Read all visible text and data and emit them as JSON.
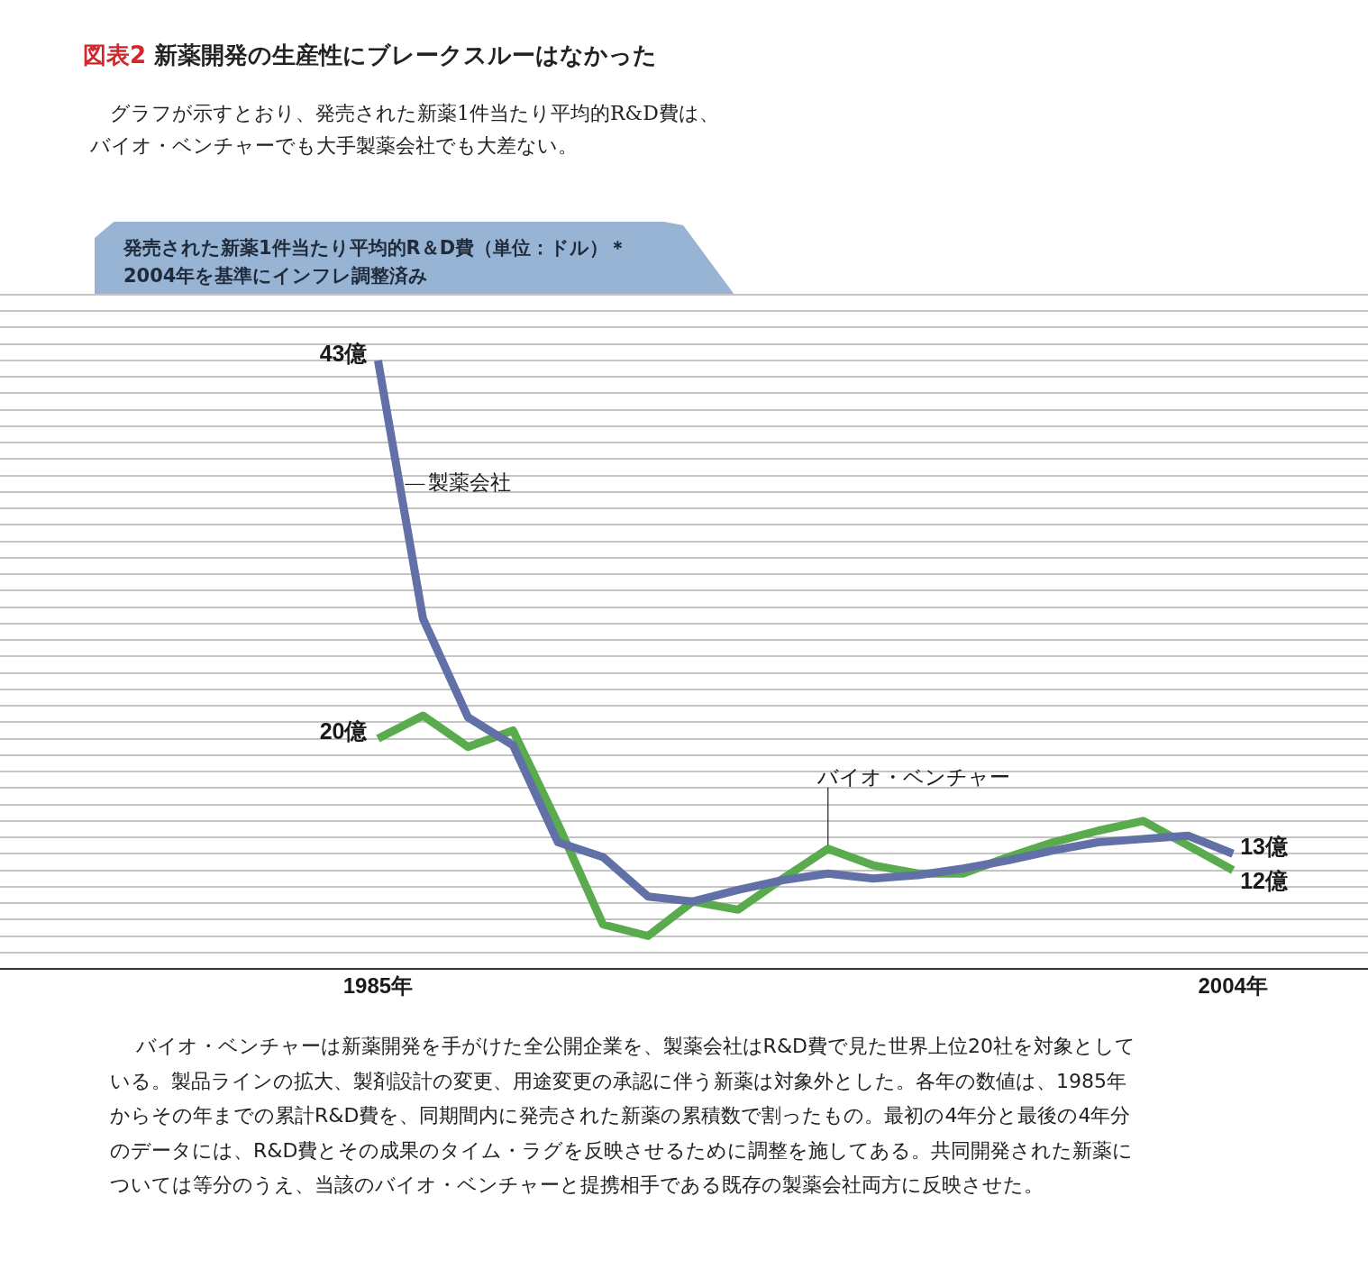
{
  "chart_data": {
    "type": "line",
    "title": "図表2 新薬開発の生産性にブレークスルーはなかった",
    "subtitle": "グラフが示すとおり、発売された新薬1件当たり平均的R&D費は、バイオ・ベンチャーでも大手製薬会社でも大差ない。",
    "ylabel": "発売された新薬1件当たり平均的R＆D費（単位：ドル）＊2004年を基準にインフレ調整済み",
    "annotations": [
      "バイオ・ベンチャーは新薬開発を手がけた全公開企業を、製薬会社はR&D費で見た世界上位20社を対象としている。製品ラインの拡大、製剤設計の変更、用途変更の承認に伴う新薬は対象外とした。各年の数値は、1985年からその年までの累計R&D費を、同期間内に発売された新薬の累積数で割ったもの。最初の4年分と最後の4年分のデータには、R&D費とその成果のタイム・ラグを反映させるために調整を施してある。共同開発された新薬については等分のうえ、当該のバイオ・ベンチャーと提携相手である既存の製薬会社両方に反映させた。"
    ],
    "x": [
      1985,
      1986,
      1987,
      1988,
      1989,
      1990,
      1991,
      1992,
      1993,
      1994,
      1995,
      1996,
      1997,
      1998,
      1999,
      2000,
      2001,
      2002,
      2003,
      2004
    ],
    "xlim": [
      1976.6,
      2007
    ],
    "xticks": [
      {
        "value": 1985,
        "label": "1985年"
      },
      {
        "value": 2004,
        "label": "2004年"
      }
    ],
    "ylim": [
      6,
      47
    ],
    "yticks": [
      {
        "value": 7,
        "label": null
      },
      {
        "value": 8,
        "label": null
      },
      {
        "value": 9,
        "label": null
      },
      {
        "value": 10,
        "label": null
      },
      {
        "value": 11,
        "label": null
      },
      {
        "value": 12,
        "label": null
      },
      {
        "value": 13,
        "label": null
      },
      {
        "value": 14,
        "label": null
      },
      {
        "value": 15,
        "label": null
      },
      {
        "value": 16,
        "label": null
      },
      {
        "value": 17,
        "label": null
      },
      {
        "value": 18,
        "label": null
      },
      {
        "value": 19,
        "label": null
      },
      {
        "value": 20,
        "label": null
      },
      {
        "value": 21,
        "label": null
      },
      {
        "value": 22,
        "label": null
      },
      {
        "value": 23,
        "label": null
      },
      {
        "value": 24,
        "label": null
      },
      {
        "value": 25,
        "label": null
      },
      {
        "value": 26,
        "label": null
      },
      {
        "value": 27,
        "label": null
      },
      {
        "value": 28,
        "label": null
      },
      {
        "value": 29,
        "label": null
      },
      {
        "value": 30,
        "label": null
      },
      {
        "value": 31,
        "label": null
      },
      {
        "value": 32,
        "label": null
      },
      {
        "value": 33,
        "label": null
      },
      {
        "value": 34,
        "label": null
      },
      {
        "value": 35,
        "label": null
      },
      {
        "value": 36,
        "label": null
      },
      {
        "value": 37,
        "label": null
      },
      {
        "value": 38,
        "label": null
      },
      {
        "value": 39,
        "label": null
      },
      {
        "value": 40,
        "label": null
      },
      {
        "value": 41,
        "label": null
      },
      {
        "value": 42,
        "label": null
      },
      {
        "value": 43,
        "label": null
      },
      {
        "value": 44,
        "label": null
      },
      {
        "value": 45,
        "label": null
      },
      {
        "value": 46,
        "label": null
      },
      {
        "value": 47,
        "label": null
      }
    ],
    "series": [
      {
        "name": "製薬会社",
        "color": "#6270a8",
        "values": [
          43,
          27.3,
          21.3,
          19.6,
          13.7,
          12.8,
          10.4,
          10.1,
          10.8,
          11.4,
          11.8,
          11.5,
          11.7,
          12.1,
          12.6,
          13.2,
          13.7,
          13.9,
          14.1,
          13
        ],
        "value_labels": [
          "43億",
          null,
          null,
          null,
          null,
          null,
          null,
          null,
          null,
          null,
          null,
          null,
          null,
          null,
          null,
          null,
          null,
          null,
          null,
          "13億"
        ]
      },
      {
        "name": "バイオ・ベンチャー",
        "color": "#5aaa4e",
        "values": [
          20,
          21.4,
          19.5,
          20.5,
          14.8,
          8.7,
          8,
          10.1,
          9.6,
          11.5,
          13.3,
          12.3,
          11.8,
          11.8,
          12.8,
          13.7,
          14.4,
          15,
          13.5,
          12
        ],
        "value_labels": [
          "20億",
          null,
          null,
          null,
          null,
          null,
          null,
          null,
          null,
          null,
          null,
          null,
          null,
          null,
          null,
          null,
          null,
          null,
          null,
          "12億"
        ]
      }
    ],
    "grid": "y",
    "legend": false,
    "tick_labels": "x",
    "marker": "none",
    "line_style": "solid"
  }
}
